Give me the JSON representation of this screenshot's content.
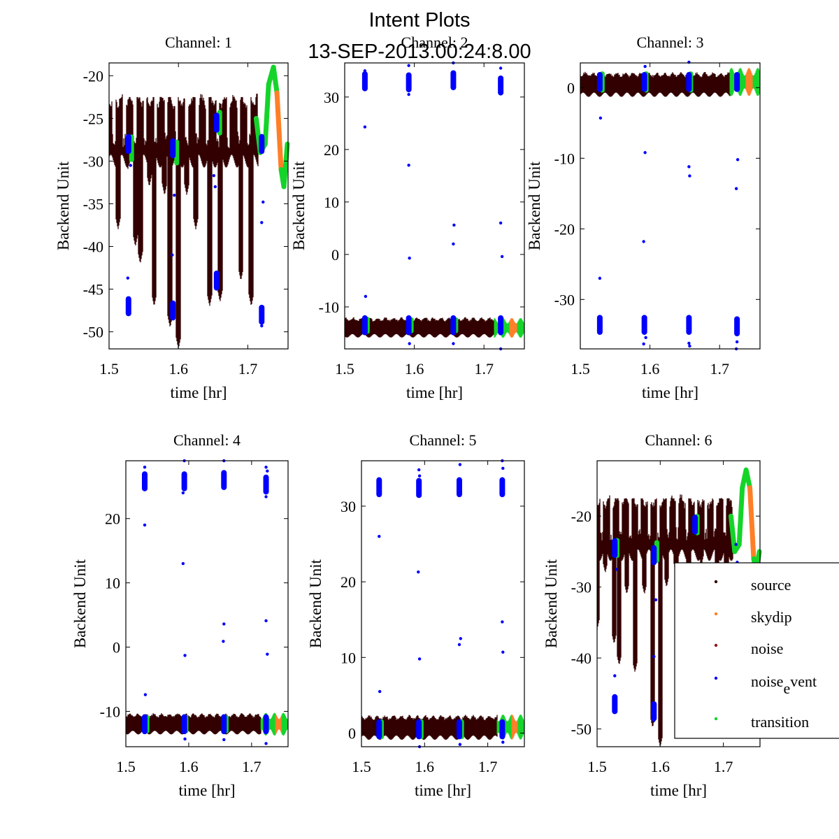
{
  "figure": {
    "title_line1": "Intent Plots",
    "title_line2": "13-SEP-2013.00:24:8.00"
  },
  "colors": {
    "source": "#330000",
    "skydip": "#ff7f27",
    "noise": "#8b1a1a",
    "noise_event": "#0000ff",
    "transition": "#14d42a"
  },
  "legend": {
    "placement": "bottom-right of Channel 6",
    "entries": [
      {
        "key": "source",
        "label": "source"
      },
      {
        "key": "skydip",
        "label": "skydip"
      },
      {
        "key": "noise",
        "label": "noise"
      },
      {
        "key": "noise_event",
        "label": "noise",
        "sub": "e",
        "rest": "vent"
      },
      {
        "key": "transition",
        "label": "transition"
      }
    ]
  },
  "chart_data": [
    {
      "type": "scatter",
      "title": "Channel: 1",
      "xlabel": "time [hr]",
      "ylabel": "Backend Unit",
      "xlim": [
        1.5,
        1.758
      ],
      "ylim": [
        -52,
        -18.5
      ],
      "xticks": [
        1.5,
        1.6,
        1.7
      ],
      "yticks": [
        -50,
        -45,
        -40,
        -35,
        -30,
        -25,
        -20
      ],
      "source_band": {
        "x": [
          1.5,
          1.715
        ],
        "top": -22.5,
        "base_bottom": -30,
        "dips": [
          [
            1.513,
            -38
          ],
          [
            1.527,
            -31
          ],
          [
            1.538,
            -40
          ],
          [
            1.545,
            -42
          ],
          [
            1.558,
            -33
          ],
          [
            1.565,
            -47
          ],
          [
            1.58,
            -34
          ],
          [
            1.588,
            -49.5
          ],
          [
            1.6,
            -52
          ],
          [
            1.612,
            -34
          ],
          [
            1.625,
            -38
          ],
          [
            1.645,
            -47
          ],
          [
            1.66,
            -46.5
          ],
          [
            1.668,
            -29
          ],
          [
            1.69,
            -44
          ],
          [
            1.705,
            -47
          ]
        ]
      },
      "noise_event_clusters": [
        [
          1.528,
          -28,
          -47
        ],
        [
          1.592,
          -28.5,
          -47.5
        ],
        [
          1.655,
          -25.5,
          -44
        ],
        [
          1.72,
          -28,
          -48
        ]
      ],
      "noise_event_outliers": [
        [
          1.527,
          -43.7
        ],
        [
          1.531,
          -30.5
        ],
        [
          1.594,
          -34
        ],
        [
          1.591,
          -41
        ],
        [
          1.651,
          -31.7
        ],
        [
          1.653,
          -33
        ],
        [
          1.72,
          -37.2
        ],
        [
          1.722,
          -34.8
        ],
        [
          1.72,
          -49.3
        ]
      ],
      "transition_segments": [
        [
          1.532,
          -28.5,
          1.6
        ],
        [
          1.597,
          -29,
          1.5
        ],
        [
          1.659,
          -25.5,
          1.5
        ]
      ],
      "skydip_curve": [
        [
          1.712,
          -25
        ],
        [
          1.718,
          -29
        ],
        [
          1.725,
          -28
        ],
        [
          1.73,
          -21
        ],
        [
          1.737,
          -19
        ],
        [
          1.742,
          -22
        ],
        [
          1.748,
          -31
        ],
        [
          1.752,
          -33
        ],
        [
          1.757,
          -28
        ]
      ],
      "skydip_split": 1.738
    },
    {
      "type": "scatter",
      "title": "Channel: 2",
      "xlabel": "time [hr]",
      "ylabel": "Backend Unit",
      "xlim": [
        1.5,
        1.758
      ],
      "ylim": [
        -18,
        36.5
      ],
      "xticks": [
        1.5,
        1.6,
        1.7
      ],
      "yticks": [
        -10,
        0,
        10,
        20,
        30
      ],
      "source_band": {
        "x": [
          1.5,
          1.715
        ],
        "top": -12.2,
        "base_bottom": -15.5,
        "dips": []
      },
      "noise_event_clusters": [
        [
          1.529,
          33,
          -13.5
        ],
        [
          1.592,
          32.8,
          -13.5
        ],
        [
          1.656,
          33.2,
          -13.5
        ],
        [
          1.724,
          32.2,
          -13.5
        ]
      ],
      "noise_event_outliers": [
        [
          1.529,
          35
        ],
        [
          1.529,
          24.3
        ],
        [
          1.53,
          -8
        ],
        [
          1.592,
          36
        ],
        [
          1.592,
          30.5
        ],
        [
          1.592,
          17
        ],
        [
          1.593,
          -0.7
        ],
        [
          1.593,
          -17
        ],
        [
          1.656,
          36.5
        ],
        [
          1.657,
          5.6
        ],
        [
          1.656,
          2
        ],
        [
          1.656,
          -17
        ],
        [
          1.724,
          35.5
        ],
        [
          1.724,
          6
        ],
        [
          1.726,
          -0.4
        ],
        [
          1.724,
          -18
        ]
      ],
      "transition_segments": [
        [
          1.532,
          -13.5,
          1.6
        ],
        [
          1.595,
          -13.5,
          1.5
        ],
        [
          1.659,
          -13.5,
          1.5
        ]
      ],
      "band_tail": {
        "x": [
          1.715,
          1.758
        ],
        "center": -14,
        "half": 1.7
      },
      "skydip_range": [
        1.737,
        1.748
      ]
    },
    {
      "type": "scatter",
      "title": "Channel: 3",
      "xlabel": "time [hr]",
      "ylabel": "Backend Unit",
      "xlim": [
        1.5,
        1.758
      ],
      "ylim": [
        -37,
        3.5
      ],
      "xticks": [
        1.5,
        1.6,
        1.7
      ],
      "yticks": [
        -30,
        -20,
        -10,
        0
      ],
      "source_band": {
        "x": [
          1.5,
          1.715
        ],
        "top": 2,
        "base_bottom": -1,
        "dips": []
      },
      "noise_event_clusters": [
        [
          1.528,
          0.8,
          -33.6
        ],
        [
          1.592,
          0.8,
          -33.6
        ],
        [
          1.656,
          0.8,
          -33.6
        ],
        [
          1.725,
          0.8,
          -33.8
        ]
      ],
      "noise_event_outliers": [
        [
          1.529,
          -4.3
        ],
        [
          1.528,
          -27
        ],
        [
          1.593,
          3
        ],
        [
          1.593,
          -9.2
        ],
        [
          1.591,
          -21.8
        ],
        [
          1.591,
          -36.3
        ],
        [
          1.594,
          -35.4
        ],
        [
          1.656,
          3.6
        ],
        [
          1.656,
          -11.2
        ],
        [
          1.657,
          -12.5
        ],
        [
          1.656,
          -36.2
        ],
        [
          1.657,
          -36.6
        ],
        [
          1.726,
          -10.2
        ],
        [
          1.724,
          -14.3
        ],
        [
          1.725,
          -36
        ],
        [
          1.724,
          -37
        ]
      ],
      "transition_segments": [
        [
          1.531,
          0.8,
          1.5
        ],
        [
          1.594,
          0.8,
          1.5
        ],
        [
          1.658,
          0.8,
          1.5
        ]
      ],
      "band_tail": {
        "x": [
          1.715,
          1.758
        ],
        "center": 0.8,
        "half": 1.8
      },
      "skydip_range": [
        1.738,
        1.748
      ]
    },
    {
      "type": "scatter",
      "title": "Channel: 4",
      "xlabel": "time [hr]",
      "ylabel": "Backend Unit",
      "xlim": [
        1.5,
        1.758
      ],
      "ylim": [
        -15.5,
        29
      ],
      "xticks": [
        1.5,
        1.6,
        1.7
      ],
      "yticks": [
        -10,
        0,
        10,
        20
      ],
      "source_band": {
        "x": [
          1.5,
          1.715
        ],
        "top": -10.5,
        "base_bottom": -13.3,
        "dips": []
      },
      "noise_event_clusters": [
        [
          1.53,
          25.8,
          -12
        ],
        [
          1.593,
          25.8,
          -12
        ],
        [
          1.656,
          26,
          -12
        ],
        [
          1.723,
          25.3,
          -12
        ]
      ],
      "noise_event_outliers": [
        [
          1.53,
          28
        ],
        [
          1.53,
          19
        ],
        [
          1.531,
          -7.4
        ],
        [
          1.593,
          29
        ],
        [
          1.591,
          24
        ],
        [
          1.591,
          13
        ],
        [
          1.594,
          -1.3
        ],
        [
          1.594,
          -14.3
        ],
        [
          1.656,
          29
        ],
        [
          1.656,
          3.6
        ],
        [
          1.655,
          0.9
        ],
        [
          1.656,
          -14.4
        ],
        [
          1.723,
          28
        ],
        [
          1.725,
          27.4
        ],
        [
          1.723,
          23.4
        ],
        [
          1.723,
          4.1
        ],
        [
          1.725,
          -1.1
        ],
        [
          1.725,
          -13
        ],
        [
          1.723,
          -15
        ]
      ],
      "transition_segments": [
        [
          1.533,
          -12,
          1.4
        ],
        [
          1.595,
          -12,
          1.4
        ],
        [
          1.659,
          -12,
          1.4
        ]
      ],
      "band_tail": {
        "x": [
          1.715,
          1.758
        ],
        "center": -12,
        "half": 1.6
      },
      "skydip_range": [
        1.738,
        1.748
      ]
    },
    {
      "type": "scatter",
      "title": "Channel: 5",
      "xlabel": "time [hr]",
      "ylabel": "Backend Unit",
      "xlim": [
        1.5,
        1.758
      ],
      "ylim": [
        -1.8,
        36
      ],
      "xticks": [
        1.5,
        1.6,
        1.7
      ],
      "yticks": [
        0,
        10,
        20,
        30
      ],
      "source_band": {
        "x": [
          1.5,
          1.715
        ],
        "top": 2.2,
        "base_bottom": -0.6,
        "dips": []
      },
      "noise_event_clusters": [
        [
          1.528,
          32.5,
          0.5
        ],
        [
          1.591,
          32.4,
          0.5
        ],
        [
          1.655,
          32.5,
          0.5
        ],
        [
          1.723,
          32.5,
          0.5
        ]
      ],
      "noise_event_outliers": [
        [
          1.528,
          26
        ],
        [
          1.529,
          5.5
        ],
        [
          1.591,
          34.8
        ],
        [
          1.592,
          34
        ],
        [
          1.59,
          21.3
        ],
        [
          1.592,
          9.8
        ],
        [
          1.592,
          -1.8
        ],
        [
          1.656,
          35.5
        ],
        [
          1.655,
          11.7
        ],
        [
          1.657,
          12.5
        ],
        [
          1.656,
          -1.5
        ],
        [
          1.723,
          36
        ],
        [
          1.724,
          35
        ],
        [
          1.723,
          14.7
        ],
        [
          1.724,
          10.7
        ],
        [
          1.724,
          -1.2
        ]
      ],
      "transition_segments": [
        [
          1.531,
          0.5,
          1.3
        ],
        [
          1.594,
          0.5,
          1.3
        ],
        [
          1.658,
          0.5,
          1.3
        ]
      ],
      "band_tail": {
        "x": [
          1.715,
          1.758
        ],
        "center": 0.8,
        "half": 1.5
      },
      "skydip_range": [
        1.738,
        1.748
      ]
    },
    {
      "type": "scatter",
      "title": "Channel: 6",
      "xlabel": "time [hr]",
      "ylabel": "Backend Unit",
      "xlim": [
        1.5,
        1.758
      ],
      "ylim": [
        -52.5,
        -12.2
      ],
      "xticks": [
        1.5,
        1.6,
        1.7
      ],
      "yticks": [
        -50,
        -40,
        -30,
        -20
      ],
      "source_band": {
        "x": [
          1.5,
          1.715
        ],
        "top": -17.5,
        "base_bottom": -25.5,
        "dips": [
          [
            1.5,
            -36
          ],
          [
            1.513,
            -28
          ],
          [
            1.527,
            -38
          ],
          [
            1.535,
            -41
          ],
          [
            1.547,
            -31
          ],
          [
            1.56,
            -42
          ],
          [
            1.575,
            -31
          ],
          [
            1.588,
            -49.8
          ],
          [
            1.6,
            -52.5
          ],
          [
            1.61,
            -30
          ],
          [
            1.625,
            -28
          ],
          [
            1.645,
            -30
          ],
          [
            1.665,
            -27
          ],
          [
            1.69,
            -30
          ],
          [
            1.705,
            -29
          ]
        ]
      },
      "noise_event_clusters": [
        [
          1.528,
          -24.5,
          -46.5
        ],
        [
          1.59,
          -25.5,
          -47.5
        ],
        [
          1.655,
          -21.2,
          -99
        ]
      ],
      "noise_event_outliers": [
        [
          1.528,
          -42.5
        ],
        [
          1.531,
          -27.5
        ],
        [
          1.59,
          -39.8
        ],
        [
          1.593,
          -31.8
        ],
        [
          1.59,
          -48.8
        ],
        [
          1.655,
          -20
        ],
        [
          1.72,
          -24
        ],
        [
          1.722,
          -26.5
        ]
      ],
      "transition_segments": [
        [
          1.531,
          -24.5,
          1.4
        ],
        [
          1.594,
          -25,
          1.6
        ],
        [
          1.658,
          -21.2,
          1.5
        ]
      ],
      "skydip_curve": [
        [
          1.712,
          -20
        ],
        [
          1.718,
          -25
        ],
        [
          1.725,
          -24
        ],
        [
          1.73,
          -16
        ],
        [
          1.736,
          -13.5
        ],
        [
          1.742,
          -16
        ],
        [
          1.748,
          -26
        ],
        [
          1.752,
          -28
        ],
        [
          1.757,
          -25
        ]
      ],
      "skydip_split": 1.738
    }
  ]
}
